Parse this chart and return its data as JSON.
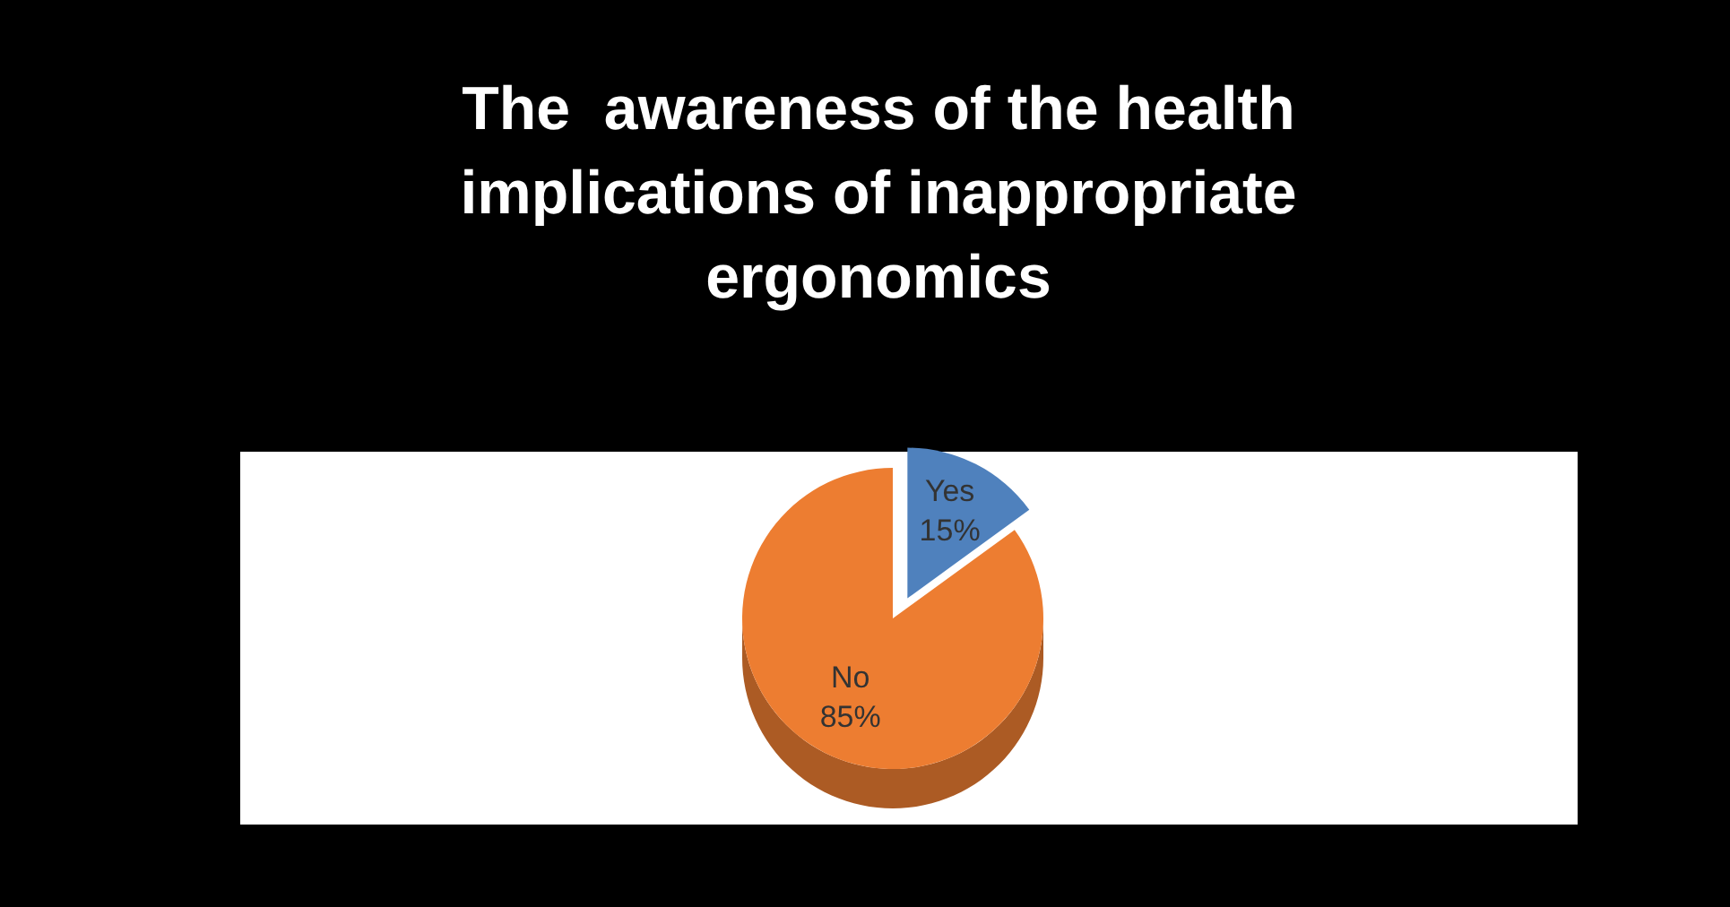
{
  "chart_data": {
    "type": "pie",
    "title": "The  awareness of the health implications of inappropriate ergonomics",
    "categories": [
      "Yes",
      "No"
    ],
    "values": [
      15,
      85
    ],
    "colors": [
      "#4f81bd",
      "#ed7d31"
    ],
    "value_labels": [
      "15%",
      "85%"
    ],
    "legend": false
  }
}
